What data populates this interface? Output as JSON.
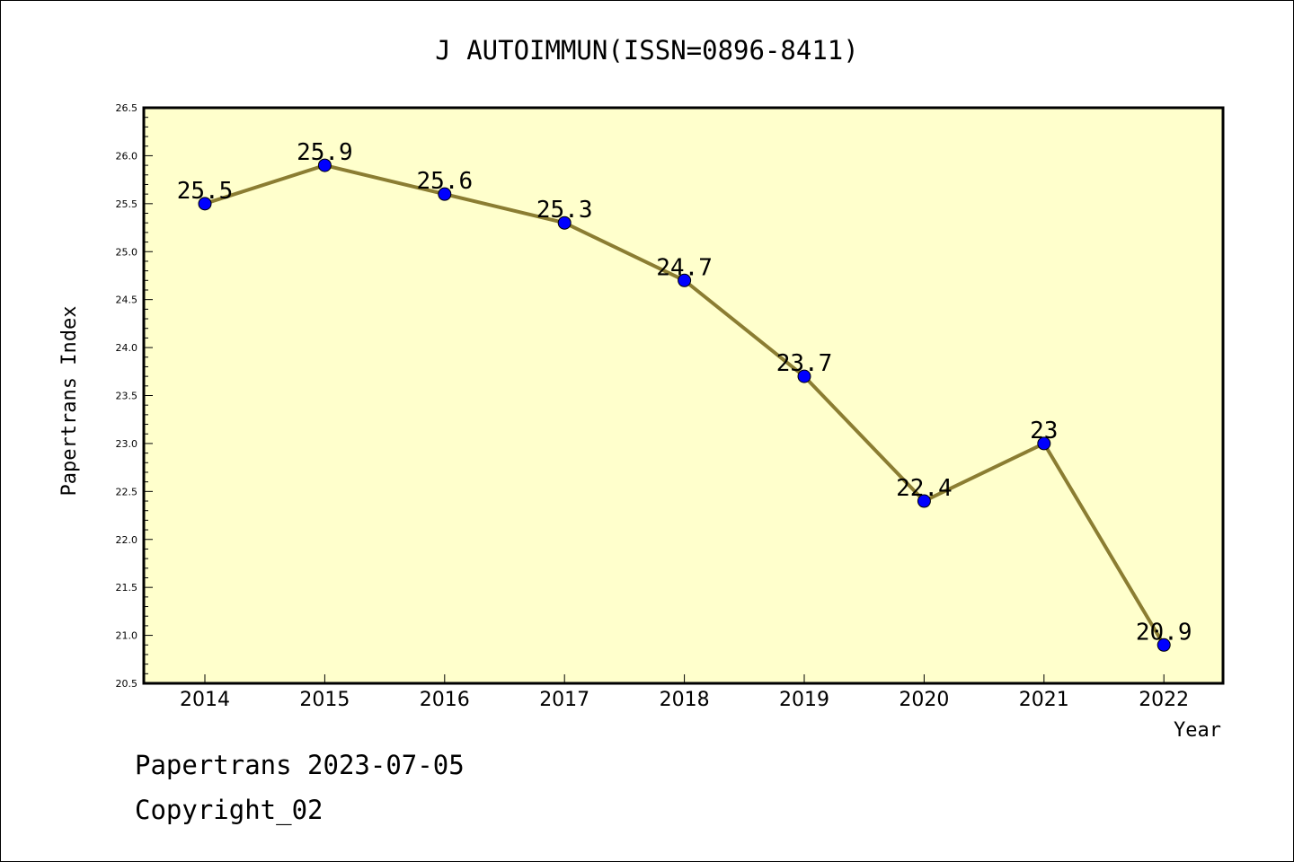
{
  "chart_data": {
    "type": "line",
    "title": "J AUTOIMMUN(ISSN=0896-8411)",
    "xlabel": "Year",
    "ylabel": "Papertrans Index",
    "categories": [
      "2014",
      "2015",
      "2016",
      "2017",
      "2018",
      "2019",
      "2020",
      "2021",
      "2022"
    ],
    "series": [
      {
        "values": [
          25.5,
          25.9,
          25.6,
          25.3,
          24.7,
          23.7,
          22.4,
          23.0,
          20.9
        ],
        "point_labels": [
          "25.5",
          "25.9",
          "25.6",
          "25.3",
          "24.7",
          "23.7",
          "22.4",
          "23",
          "20.9"
        ]
      }
    ],
    "ylim": [
      20.5,
      26.5
    ],
    "yticks": [
      "20.5",
      "21.0",
      "21.5",
      "22.0",
      "22.5",
      "23.0",
      "23.5",
      "24.0",
      "24.5",
      "25.0",
      "25.5",
      "26.0",
      "26.5"
    ],
    "grid": false,
    "colors": {
      "plot_background": "#ffffcc",
      "line": "#8b7d32",
      "marker": "#0000ff",
      "axis": "#000000"
    }
  },
  "footer": {
    "date_line": "Papertrans 2023-07-05",
    "copyright_line": "Copyright_02"
  }
}
